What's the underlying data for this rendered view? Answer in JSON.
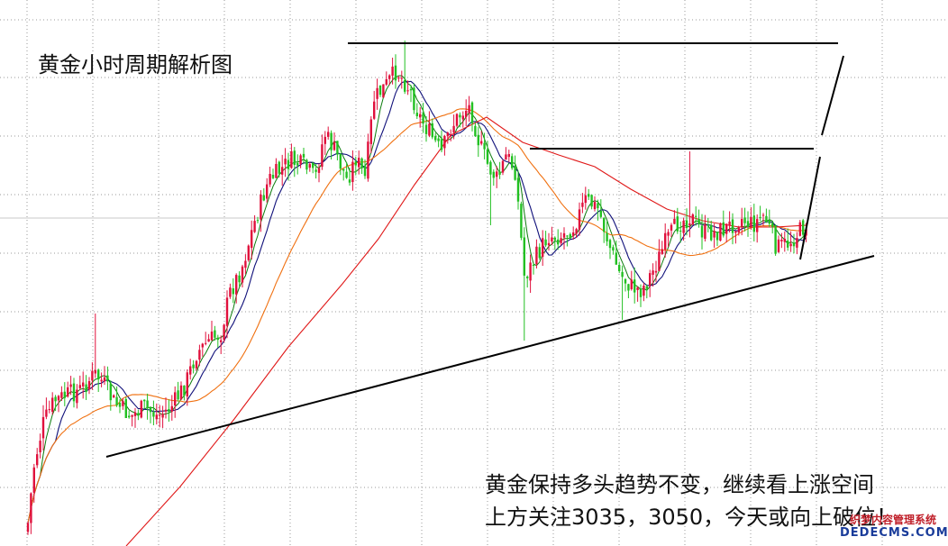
{
  "title": "黄金小时周期解析图",
  "annotation": {
    "line1": "黄金保持多头趋势不变，继续看上涨空间",
    "line2": "上方关注3035，3050，今天或向上破位！"
  },
  "watermark": {
    "line1": "织梦内容管理系统",
    "line2": "DEDECMS.COM"
  },
  "chart_data": {
    "type": "candlestick",
    "grid": true,
    "colors": {
      "up": "#e0103c",
      "down": "#22c022",
      "ma_fast": "#0c7c0c",
      "ma_mid": "#10107a",
      "ma_slow": "#f07010",
      "ma_long": "#e01818",
      "trend_lines": "#000000",
      "grid": "#9a9a9a"
    }
  }
}
